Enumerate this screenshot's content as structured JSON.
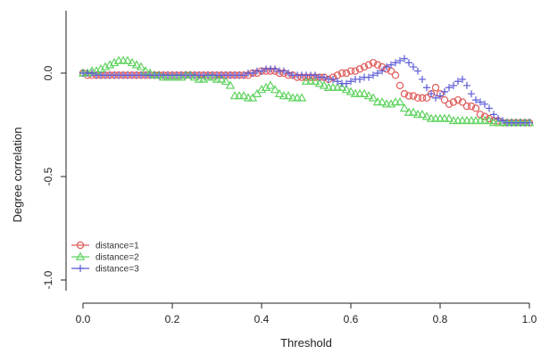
{
  "chart_data": {
    "type": "scatter",
    "title": "",
    "xlabel": "Threshold",
    "ylabel": "Degree correlation",
    "xlim": [
      0,
      1
    ],
    "ylim": [
      -1.0,
      0.25
    ],
    "x_ticks": [
      "0.0",
      "0.2",
      "0.4",
      "0.6",
      "0.8",
      "1.0"
    ],
    "y_ticks": [
      "0.0",
      "-0.5",
      "-1.0"
    ],
    "grid": false,
    "legend_position": "bottom-left",
    "series": [
      {
        "name": "distance=1",
        "marker": "circle",
        "color": "#e05a5a",
        "points": [
          [
            0.0,
            0.0
          ],
          [
            0.01,
            -0.01
          ],
          [
            0.02,
            -0.01
          ],
          [
            0.03,
            -0.01
          ],
          [
            0.04,
            -0.01
          ],
          [
            0.05,
            -0.01
          ],
          [
            0.06,
            -0.01
          ],
          [
            0.07,
            -0.01
          ],
          [
            0.08,
            -0.01
          ],
          [
            0.09,
            -0.01
          ],
          [
            0.1,
            -0.01
          ],
          [
            0.11,
            -0.01
          ],
          [
            0.12,
            -0.01
          ],
          [
            0.13,
            -0.01
          ],
          [
            0.14,
            -0.01
          ],
          [
            0.15,
            -0.01
          ],
          [
            0.16,
            -0.01
          ],
          [
            0.17,
            -0.01
          ],
          [
            0.18,
            -0.01
          ],
          [
            0.19,
            -0.01
          ],
          [
            0.2,
            -0.01
          ],
          [
            0.21,
            -0.01
          ],
          [
            0.22,
            -0.01
          ],
          [
            0.23,
            -0.01
          ],
          [
            0.24,
            -0.01
          ],
          [
            0.25,
            -0.01
          ],
          [
            0.26,
            -0.01
          ],
          [
            0.27,
            -0.01
          ],
          [
            0.28,
            -0.01
          ],
          [
            0.29,
            -0.01
          ],
          [
            0.3,
            -0.01
          ],
          [
            0.31,
            -0.01
          ],
          [
            0.32,
            -0.01
          ],
          [
            0.33,
            -0.01
          ],
          [
            0.34,
            -0.01
          ],
          [
            0.35,
            -0.01
          ],
          [
            0.36,
            -0.01
          ],
          [
            0.37,
            -0.01
          ],
          [
            0.38,
            0.0
          ],
          [
            0.39,
            0.0
          ],
          [
            0.4,
            0.01
          ],
          [
            0.41,
            0.01
          ],
          [
            0.42,
            0.01
          ],
          [
            0.43,
            0.01
          ],
          [
            0.44,
            0.0
          ],
          [
            0.45,
            0.0
          ],
          [
            0.46,
            -0.01
          ],
          [
            0.47,
            -0.01
          ],
          [
            0.48,
            -0.02
          ],
          [
            0.49,
            -0.02
          ],
          [
            0.5,
            -0.02
          ],
          [
            0.51,
            -0.02
          ],
          [
            0.52,
            -0.02
          ],
          [
            0.53,
            -0.02
          ],
          [
            0.54,
            -0.02
          ],
          [
            0.55,
            -0.03
          ],
          [
            0.56,
            -0.02
          ],
          [
            0.57,
            -0.01
          ],
          [
            0.58,
            0.0
          ],
          [
            0.59,
            0.0
          ],
          [
            0.6,
            0.01
          ],
          [
            0.61,
            0.01
          ],
          [
            0.62,
            0.02
          ],
          [
            0.63,
            0.03
          ],
          [
            0.64,
            0.04
          ],
          [
            0.65,
            0.05
          ],
          [
            0.66,
            0.04
          ],
          [
            0.67,
            0.03
          ],
          [
            0.68,
            0.02
          ],
          [
            0.69,
            0.01
          ],
          [
            0.7,
            -0.01
          ],
          [
            0.71,
            -0.06
          ],
          [
            0.72,
            -0.1
          ],
          [
            0.73,
            -0.11
          ],
          [
            0.74,
            -0.11
          ],
          [
            0.75,
            -0.12
          ],
          [
            0.76,
            -0.12
          ],
          [
            0.77,
            -0.12
          ],
          [
            0.78,
            -0.1
          ],
          [
            0.79,
            -0.07
          ],
          [
            0.8,
            -0.1
          ],
          [
            0.81,
            -0.13
          ],
          [
            0.82,
            -0.15
          ],
          [
            0.83,
            -0.14
          ],
          [
            0.84,
            -0.13
          ],
          [
            0.85,
            -0.14
          ],
          [
            0.86,
            -0.16
          ],
          [
            0.87,
            -0.16
          ],
          [
            0.88,
            -0.17
          ],
          [
            0.89,
            -0.2
          ],
          [
            0.9,
            -0.21
          ],
          [
            0.91,
            -0.22
          ],
          [
            0.92,
            -0.23
          ],
          [
            0.93,
            -0.23
          ],
          [
            0.94,
            -0.24
          ],
          [
            0.95,
            -0.24
          ],
          [
            0.96,
            -0.24
          ],
          [
            0.97,
            -0.24
          ],
          [
            0.98,
            -0.24
          ],
          [
            0.99,
            -0.24
          ],
          [
            1.0,
            -0.24
          ]
        ]
      },
      {
        "name": "distance=2",
        "marker": "triangle",
        "color": "#5fd35f",
        "points": [
          [
            0.0,
            0.0
          ],
          [
            0.01,
            0.0
          ],
          [
            0.02,
            0.01
          ],
          [
            0.03,
            0.01
          ],
          [
            0.04,
            0.02
          ],
          [
            0.05,
            0.03
          ],
          [
            0.06,
            0.04
          ],
          [
            0.07,
            0.05
          ],
          [
            0.08,
            0.06
          ],
          [
            0.09,
            0.06
          ],
          [
            0.1,
            0.06
          ],
          [
            0.11,
            0.05
          ],
          [
            0.12,
            0.04
          ],
          [
            0.13,
            0.03
          ],
          [
            0.14,
            0.01
          ],
          [
            0.15,
            0.0
          ],
          [
            0.16,
            -0.01
          ],
          [
            0.17,
            -0.01
          ],
          [
            0.18,
            -0.02
          ],
          [
            0.19,
            -0.02
          ],
          [
            0.2,
            -0.02
          ],
          [
            0.21,
            -0.02
          ],
          [
            0.22,
            -0.02
          ],
          [
            0.23,
            -0.01
          ],
          [
            0.24,
            -0.01
          ],
          [
            0.25,
            -0.02
          ],
          [
            0.26,
            -0.03
          ],
          [
            0.27,
            -0.03
          ],
          [
            0.28,
            -0.02
          ],
          [
            0.29,
            -0.02
          ],
          [
            0.3,
            -0.03
          ],
          [
            0.31,
            -0.03
          ],
          [
            0.32,
            -0.04
          ],
          [
            0.33,
            -0.06
          ],
          [
            0.34,
            -0.11
          ],
          [
            0.35,
            -0.11
          ],
          [
            0.36,
            -0.11
          ],
          [
            0.37,
            -0.12
          ],
          [
            0.38,
            -0.12
          ],
          [
            0.39,
            -0.1
          ],
          [
            0.4,
            -0.08
          ],
          [
            0.41,
            -0.07
          ],
          [
            0.42,
            -0.06
          ],
          [
            0.43,
            -0.08
          ],
          [
            0.44,
            -0.1
          ],
          [
            0.45,
            -0.11
          ],
          [
            0.46,
            -0.11
          ],
          [
            0.47,
            -0.12
          ],
          [
            0.48,
            -0.12
          ],
          [
            0.49,
            -0.12
          ],
          [
            0.5,
            -0.04
          ],
          [
            0.51,
            -0.04
          ],
          [
            0.52,
            -0.04
          ],
          [
            0.53,
            -0.05
          ],
          [
            0.54,
            -0.06
          ],
          [
            0.55,
            -0.07
          ],
          [
            0.56,
            -0.07
          ],
          [
            0.57,
            -0.07
          ],
          [
            0.58,
            -0.07
          ],
          [
            0.59,
            -0.08
          ],
          [
            0.6,
            -0.09
          ],
          [
            0.61,
            -0.1
          ],
          [
            0.62,
            -0.1
          ],
          [
            0.63,
            -0.1
          ],
          [
            0.64,
            -0.11
          ],
          [
            0.65,
            -0.12
          ],
          [
            0.66,
            -0.14
          ],
          [
            0.67,
            -0.14
          ],
          [
            0.68,
            -0.15
          ],
          [
            0.69,
            -0.15
          ],
          [
            0.7,
            -0.14
          ],
          [
            0.71,
            -0.14
          ],
          [
            0.72,
            -0.17
          ],
          [
            0.73,
            -0.19
          ],
          [
            0.74,
            -0.19
          ],
          [
            0.75,
            -0.2
          ],
          [
            0.76,
            -0.2
          ],
          [
            0.77,
            -0.21
          ],
          [
            0.78,
            -0.22
          ],
          [
            0.79,
            -0.22
          ],
          [
            0.8,
            -0.22
          ],
          [
            0.81,
            -0.22
          ],
          [
            0.82,
            -0.22
          ],
          [
            0.83,
            -0.23
          ],
          [
            0.84,
            -0.23
          ],
          [
            0.85,
            -0.23
          ],
          [
            0.86,
            -0.23
          ],
          [
            0.87,
            -0.23
          ],
          [
            0.88,
            -0.23
          ],
          [
            0.89,
            -0.23
          ],
          [
            0.9,
            -0.23
          ],
          [
            0.91,
            -0.23
          ],
          [
            0.92,
            -0.24
          ],
          [
            0.93,
            -0.24
          ],
          [
            0.94,
            -0.24
          ],
          [
            0.95,
            -0.24
          ],
          [
            0.96,
            -0.24
          ],
          [
            0.97,
            -0.24
          ],
          [
            0.98,
            -0.24
          ],
          [
            0.99,
            -0.24
          ],
          [
            1.0,
            -0.24
          ]
        ]
      },
      {
        "name": "distance=3",
        "marker": "plus",
        "color": "#5b5bd6",
        "points": [
          [
            0.0,
            0.0
          ],
          [
            0.01,
            0.0
          ],
          [
            0.02,
            0.0
          ],
          [
            0.03,
            -0.01
          ],
          [
            0.04,
            -0.01
          ],
          [
            0.05,
            -0.01
          ],
          [
            0.06,
            -0.01
          ],
          [
            0.07,
            -0.01
          ],
          [
            0.08,
            -0.01
          ],
          [
            0.09,
            -0.01
          ],
          [
            0.1,
            -0.01
          ],
          [
            0.11,
            -0.01
          ],
          [
            0.12,
            -0.01
          ],
          [
            0.13,
            -0.01
          ],
          [
            0.14,
            -0.01
          ],
          [
            0.15,
            -0.01
          ],
          [
            0.16,
            -0.01
          ],
          [
            0.17,
            -0.01
          ],
          [
            0.18,
            -0.01
          ],
          [
            0.19,
            -0.01
          ],
          [
            0.2,
            -0.01
          ],
          [
            0.21,
            -0.01
          ],
          [
            0.22,
            -0.01
          ],
          [
            0.23,
            -0.01
          ],
          [
            0.24,
            -0.01
          ],
          [
            0.25,
            -0.01
          ],
          [
            0.26,
            -0.01
          ],
          [
            0.27,
            -0.01
          ],
          [
            0.28,
            -0.01
          ],
          [
            0.29,
            -0.01
          ],
          [
            0.3,
            -0.01
          ],
          [
            0.31,
            -0.01
          ],
          [
            0.32,
            -0.01
          ],
          [
            0.33,
            -0.01
          ],
          [
            0.34,
            -0.01
          ],
          [
            0.35,
            -0.01
          ],
          [
            0.36,
            -0.01
          ],
          [
            0.37,
            0.0
          ],
          [
            0.38,
            0.0
          ],
          [
            0.39,
            0.01
          ],
          [
            0.4,
            0.01
          ],
          [
            0.41,
            0.02
          ],
          [
            0.42,
            0.02
          ],
          [
            0.43,
            0.02
          ],
          [
            0.44,
            0.01
          ],
          [
            0.45,
            0.01
          ],
          [
            0.46,
            0.0
          ],
          [
            0.47,
            -0.01
          ],
          [
            0.48,
            -0.01
          ],
          [
            0.49,
            -0.01
          ],
          [
            0.5,
            -0.01
          ],
          [
            0.51,
            -0.01
          ],
          [
            0.52,
            -0.01
          ],
          [
            0.53,
            -0.02
          ],
          [
            0.54,
            -0.02
          ],
          [
            0.55,
            -0.03
          ],
          [
            0.56,
            -0.03
          ],
          [
            0.57,
            -0.04
          ],
          [
            0.58,
            -0.05
          ],
          [
            0.59,
            -0.05
          ],
          [
            0.6,
            -0.04
          ],
          [
            0.61,
            -0.03
          ],
          [
            0.62,
            -0.03
          ],
          [
            0.63,
            -0.02
          ],
          [
            0.64,
            -0.02
          ],
          [
            0.65,
            -0.01
          ],
          [
            0.66,
            0.0
          ],
          [
            0.67,
            0.01
          ],
          [
            0.68,
            0.03
          ],
          [
            0.69,
            0.04
          ],
          [
            0.7,
            0.05
          ],
          [
            0.71,
            0.06
          ],
          [
            0.72,
            0.07
          ],
          [
            0.73,
            0.05
          ],
          [
            0.74,
            0.03
          ],
          [
            0.75,
            0.01
          ],
          [
            0.76,
            -0.03
          ],
          [
            0.77,
            -0.07
          ],
          [
            0.78,
            -0.1
          ],
          [
            0.79,
            -0.12
          ],
          [
            0.8,
            -0.11
          ],
          [
            0.81,
            -0.09
          ],
          [
            0.82,
            -0.07
          ],
          [
            0.83,
            -0.06
          ],
          [
            0.84,
            -0.04
          ],
          [
            0.85,
            -0.03
          ],
          [
            0.86,
            -0.06
          ],
          [
            0.87,
            -0.1
          ],
          [
            0.88,
            -0.13
          ],
          [
            0.89,
            -0.14
          ],
          [
            0.9,
            -0.15
          ],
          [
            0.91,
            -0.17
          ],
          [
            0.92,
            -0.2
          ],
          [
            0.93,
            -0.22
          ],
          [
            0.94,
            -0.23
          ],
          [
            0.95,
            -0.24
          ],
          [
            0.96,
            -0.24
          ],
          [
            0.97,
            -0.24
          ],
          [
            0.98,
            -0.24
          ],
          [
            0.99,
            -0.24
          ],
          [
            1.0,
            -0.24
          ]
        ]
      }
    ]
  }
}
